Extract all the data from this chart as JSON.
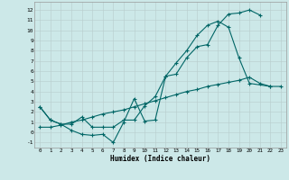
{
  "xlabel": "Humidex (Indice chaleur)",
  "line_color": "#006666",
  "bg_color": "#cce8e8",
  "grid_color": "#b8cccc",
  "ylim": [
    -1.5,
    12.8
  ],
  "xlim": [
    -0.5,
    23.5
  ],
  "yticks": [
    -1,
    0,
    1,
    2,
    3,
    4,
    5,
    6,
    7,
    8,
    9,
    10,
    11,
    12
  ],
  "xticks": [
    0,
    1,
    2,
    3,
    4,
    5,
    6,
    7,
    8,
    9,
    10,
    11,
    12,
    13,
    14,
    15,
    16,
    17,
    18,
    19,
    20,
    21,
    22,
    23
  ],
  "upper_x": [
    0,
    1,
    2,
    3,
    4,
    5,
    6,
    7,
    8,
    9,
    10,
    11,
    12,
    13,
    14,
    15,
    16,
    17,
    18,
    19,
    20,
    21
  ],
  "upper_y": [
    2.5,
    1.2,
    0.8,
    0.2,
    -0.2,
    -0.3,
    -0.2,
    -1.0,
    1.0,
    3.3,
    1.1,
    1.2,
    5.5,
    5.7,
    7.3,
    8.4,
    8.6,
    10.5,
    11.6,
    11.7,
    12.0,
    11.5
  ],
  "mid_x": [
    0,
    1,
    2,
    3,
    4,
    5,
    6,
    7,
    8,
    9,
    10,
    11,
    12,
    13,
    14,
    15,
    16,
    17,
    18,
    19,
    20,
    22
  ],
  "mid_y": [
    2.5,
    1.2,
    0.8,
    0.8,
    1.5,
    0.5,
    0.5,
    0.5,
    1.2,
    1.2,
    2.6,
    3.5,
    5.5,
    6.8,
    8.0,
    9.5,
    10.5,
    10.9,
    10.3,
    7.3,
    4.8,
    4.5
  ],
  "low_x": [
    0,
    1,
    2,
    3,
    4,
    5,
    6,
    7,
    8,
    9,
    10,
    11,
    12,
    13,
    14,
    15,
    16,
    17,
    18,
    19,
    20,
    21,
    22,
    23
  ],
  "low_y": [
    0.5,
    0.5,
    0.7,
    1.0,
    1.2,
    1.5,
    1.8,
    2.0,
    2.2,
    2.5,
    2.8,
    3.1,
    3.4,
    3.7,
    4.0,
    4.2,
    4.5,
    4.7,
    4.9,
    5.1,
    5.4,
    4.8,
    4.5,
    4.5
  ]
}
